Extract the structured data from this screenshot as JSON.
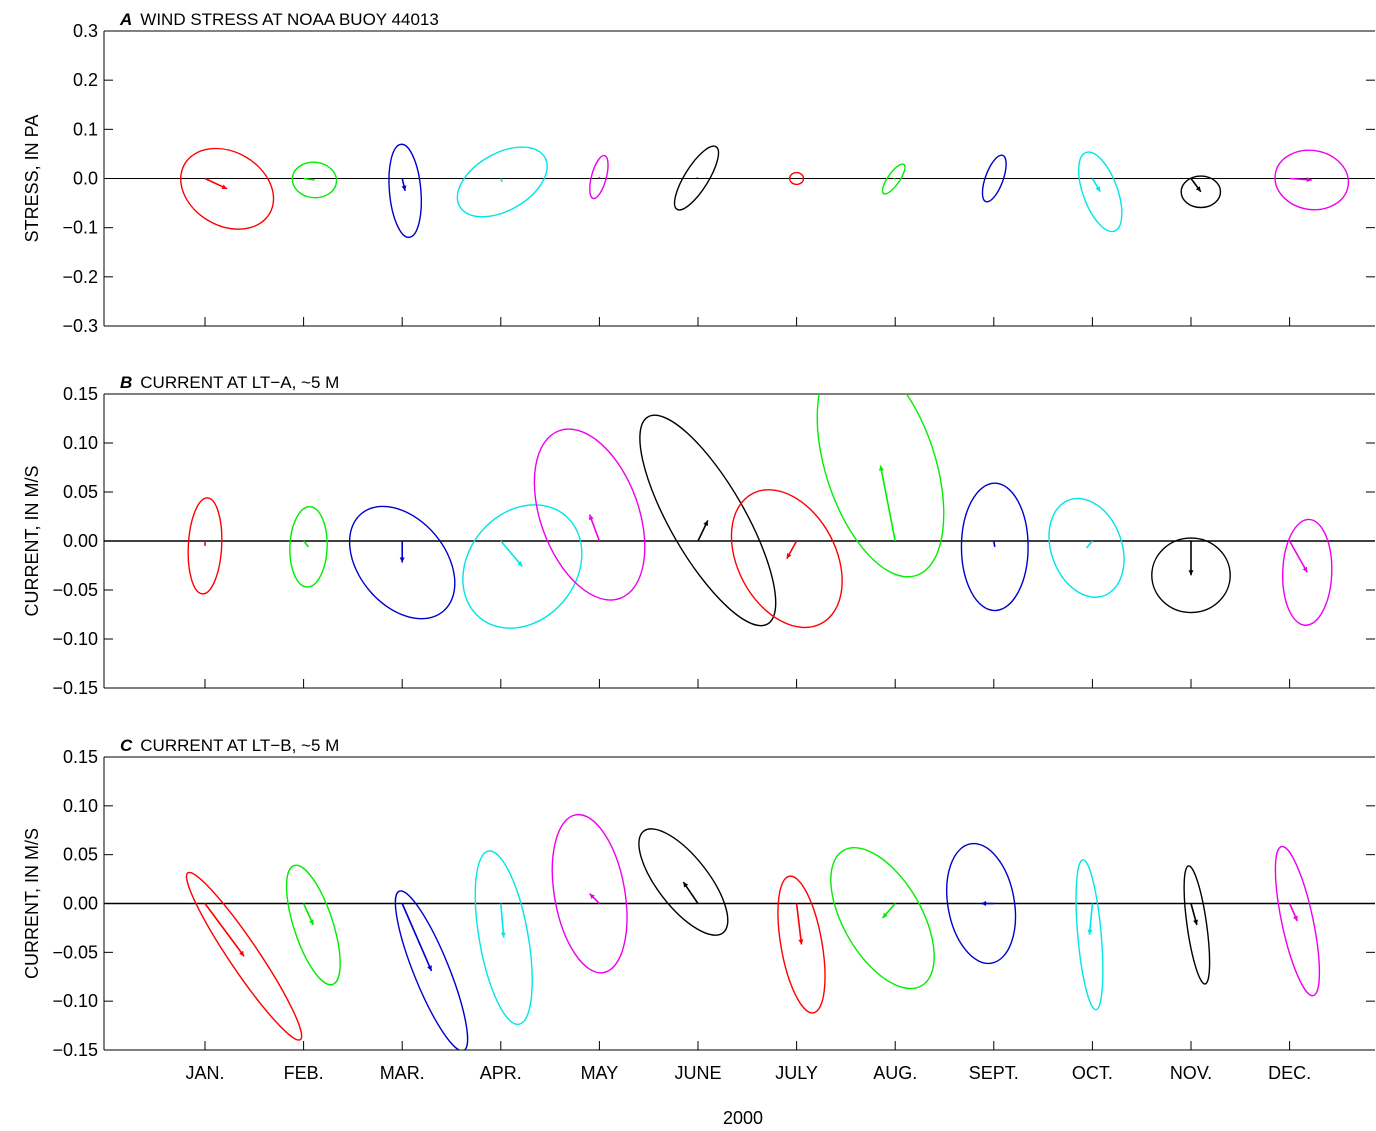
{
  "colors": {
    "red": "#ff0000",
    "green": "#00ee00",
    "blue": "#0000cc",
    "cyan": "#00e5e5",
    "magenta": "#ee00ee",
    "black": "#000000"
  },
  "month_colors": [
    "red",
    "green",
    "blue",
    "cyan",
    "magenta",
    "black",
    "red",
    "green",
    "blue",
    "cyan",
    "black",
    "magenta"
  ],
  "xlabel": "2000",
  "months": [
    "JAN.",
    "FEB.",
    "MAR.",
    "APR.",
    "MAY",
    "JUNE",
    "JULY",
    "AUG.",
    "SEPT.",
    "OCT.",
    "NOV.",
    "DEC."
  ],
  "chart_data": [
    {
      "id": "A",
      "type": "ellipse-vector",
      "letter": "A",
      "title": "WIND STRESS AT NOAA BUOY 44013",
      "ylabel": "STRESS, IN PA",
      "ylim": [
        -0.3,
        0.3
      ],
      "yticks": [
        0.3,
        0.2,
        0.1,
        0.0,
        -0.1,
        -0.2,
        -0.3
      ],
      "yticklabels": [
        "0.3",
        "0.2",
        "0.1",
        "0.0",
        "−0.1",
        "−0.2",
        "−0.3"
      ],
      "series": [
        {
          "month": "JAN.",
          "vector": [
            0.045,
            -0.021
          ],
          "ellipse": {
            "semi_major": 0.1,
            "semi_minor": 0.075,
            "angle_deg": -30,
            "offset": [
              0.045,
              -0.021
            ]
          }
        },
        {
          "month": "FEB.",
          "vector": [
            0.022,
            -0.003
          ],
          "ellipse": {
            "semi_major": 0.045,
            "semi_minor": 0.036,
            "angle_deg": -5,
            "offset": [
              0.022,
              -0.003
            ]
          }
        },
        {
          "month": "MAR.",
          "vector": [
            0.006,
            -0.025
          ],
          "ellipse": {
            "semi_major": 0.095,
            "semi_minor": 0.032,
            "angle_deg": -85,
            "offset": [
              0.006,
              -0.025
            ]
          }
        },
        {
          "month": "APR.",
          "vector": [
            0.003,
            -0.007
          ],
          "ellipse": {
            "semi_major": 0.1,
            "semi_minor": 0.058,
            "angle_deg": 30,
            "offset": [
              0.003,
              -0.007
            ]
          }
        },
        {
          "month": "MAY",
          "vector": [
            -0.001,
            0.003
          ],
          "ellipse": {
            "semi_major": 0.045,
            "semi_minor": 0.015,
            "angle_deg": 75,
            "offset": [
              -0.001,
              0.003
            ]
          }
        },
        {
          "month": "JUNE",
          "vector": [
            -0.003,
            0.001
          ],
          "ellipse": {
            "semi_major": 0.075,
            "semi_minor": 0.024,
            "angle_deg": 58,
            "offset": [
              -0.003,
              0.001
            ]
          }
        },
        {
          "month": "JULY",
          "vector": [
            0.0,
            0.0
          ],
          "ellipse": {
            "semi_major": 0.014,
            "semi_minor": 0.012,
            "angle_deg": 0,
            "offset": [
              0.0,
              0.0
            ]
          }
        },
        {
          "month": "AUG.",
          "vector": [
            -0.003,
            -0.001
          ],
          "ellipse": {
            "semi_major": 0.036,
            "semi_minor": 0.012,
            "angle_deg": 55,
            "offset": [
              -0.003,
              -0.001
            ]
          }
        },
        {
          "month": "SEPT.",
          "vector": [
            0.001,
            0.0
          ],
          "ellipse": {
            "semi_major": 0.05,
            "semi_minor": 0.018,
            "angle_deg": 70,
            "offset": [
              0.001,
              0.0
            ]
          }
        },
        {
          "month": "OCT.",
          "vector": [
            0.016,
            -0.027
          ],
          "ellipse": {
            "semi_major": 0.085,
            "semi_minor": 0.035,
            "angle_deg": -70,
            "offset": [
              0.016,
              -0.027
            ]
          }
        },
        {
          "month": "NOV.",
          "vector": [
            0.02,
            -0.027
          ],
          "ellipse": {
            "semi_major": 0.04,
            "semi_minor": 0.032,
            "angle_deg": 0,
            "offset": [
              0.02,
              -0.027
            ]
          }
        },
        {
          "month": "DEC.",
          "vector": [
            0.045,
            -0.003
          ],
          "ellipse": {
            "semi_major": 0.075,
            "semi_minor": 0.06,
            "angle_deg": -10,
            "offset": [
              0.045,
              -0.003
            ]
          }
        }
      ]
    },
    {
      "id": "B",
      "type": "ellipse-vector",
      "letter": "B",
      "title": "CURRENT AT LT−A, ~5 M",
      "ylabel": "CURRENT, IN M/S",
      "ylim": [
        -0.15,
        0.15
      ],
      "yticks": [
        0.15,
        0.1,
        0.05,
        0.0,
        -0.05,
        -0.1,
        -0.15
      ],
      "yticklabels": [
        "0.15",
        "0.10",
        "0.05",
        "0.00",
        "−0.05",
        "−0.10",
        "−0.15"
      ],
      "series": [
        {
          "month": "JAN.",
          "vector": [
            0.0,
            -0.005
          ],
          "ellipse": {
            "semi_major": 0.049,
            "semi_minor": 0.017,
            "angle_deg": -93,
            "offset": [
              0.0,
              -0.005
            ]
          }
        },
        {
          "month": "FEB.",
          "vector": [
            0.005,
            -0.006
          ],
          "ellipse": {
            "semi_major": 0.041,
            "semi_minor": 0.019,
            "angle_deg": -92,
            "offset": [
              0.005,
              -0.006
            ]
          }
        },
        {
          "month": "MAR.",
          "vector": [
            0.0,
            -0.022
          ],
          "ellipse": {
            "semi_major": 0.065,
            "semi_minor": 0.044,
            "angle_deg": -50,
            "offset": [
              0.0,
              -0.022
            ]
          }
        },
        {
          "month": "APR.",
          "vector": [
            0.022,
            -0.026
          ],
          "ellipse": {
            "semi_major": 0.068,
            "semi_minor": 0.055,
            "angle_deg": 50,
            "offset": [
              0.022,
              -0.026
            ]
          }
        },
        {
          "month": "MAY",
          "vector": [
            -0.01,
            0.027
          ],
          "ellipse": {
            "semi_major": 0.091,
            "semi_minor": 0.05,
            "angle_deg": -70,
            "offset": [
              -0.01,
              0.027
            ]
          }
        },
        {
          "month": "JUNE",
          "vector": [
            0.01,
            0.021
          ],
          "ellipse": {
            "semi_major": 0.122,
            "semi_minor": 0.038,
            "angle_deg": -60,
            "offset": [
              0.01,
              0.021
            ]
          }
        },
        {
          "month": "JULY",
          "vector": [
            -0.01,
            -0.018
          ],
          "ellipse": {
            "semi_major": 0.075,
            "semi_minor": 0.05,
            "angle_deg": -62,
            "offset": [
              -0.01,
              -0.018
            ]
          }
        },
        {
          "month": "AUG.",
          "vector": [
            -0.015,
            0.077
          ],
          "ellipse": {
            "semi_major": 0.118,
            "semi_minor": 0.056,
            "angle_deg": -72,
            "offset": [
              -0.015,
              0.077
            ]
          }
        },
        {
          "month": "SEPT.",
          "vector": [
            0.001,
            -0.006
          ],
          "ellipse": {
            "semi_major": 0.065,
            "semi_minor": 0.034,
            "angle_deg": -90,
            "offset": [
              0.001,
              -0.006
            ]
          }
        },
        {
          "month": "OCT.",
          "vector": [
            -0.006,
            -0.007
          ],
          "ellipse": {
            "semi_major": 0.052,
            "semi_minor": 0.036,
            "angle_deg": -70,
            "offset": [
              -0.006,
              -0.007
            ]
          }
        },
        {
          "month": "NOV.",
          "vector": [
            0.0,
            -0.035
          ],
          "ellipse": {
            "semi_major": 0.04,
            "semi_minor": 0.038,
            "angle_deg": 0,
            "offset": [
              0.0,
              -0.035
            ]
          }
        },
        {
          "month": "DEC.",
          "vector": [
            0.018,
            -0.032
          ],
          "ellipse": {
            "semi_major": 0.054,
            "semi_minor": 0.025,
            "angle_deg": -92,
            "offset": [
              0.018,
              -0.032
            ]
          }
        }
      ]
    },
    {
      "id": "C",
      "type": "ellipse-vector",
      "letter": "C",
      "title": "CURRENT AT LT−B, ~5 M",
      "ylabel": "CURRENT, IN M/S",
      "ylim": [
        -0.15,
        0.15
      ],
      "yticks": [
        0.15,
        0.1,
        0.05,
        0.0,
        -0.05,
        -0.1,
        -0.15
      ],
      "yticklabels": [
        "0.15",
        "0.10",
        "0.05",
        "0.00",
        "−0.05",
        "−0.10",
        "−0.15"
      ],
      "series": [
        {
          "month": "JAN.",
          "vector": [
            0.04,
            -0.054
          ],
          "ellipse": {
            "semi_major": 0.103,
            "semi_minor": 0.015,
            "angle_deg": -56,
            "offset": [
              0.04,
              -0.054
            ]
          }
        },
        {
          "month": "FEB.",
          "vector": [
            0.01,
            -0.022
          ],
          "ellipse": {
            "semi_major": 0.064,
            "semi_minor": 0.02,
            "angle_deg": -72,
            "offset": [
              0.01,
              -0.022
            ]
          }
        },
        {
          "month": "MAR.",
          "vector": [
            0.03,
            -0.069
          ],
          "ellipse": {
            "semi_major": 0.088,
            "semi_minor": 0.018,
            "angle_deg": -68,
            "offset": [
              0.03,
              -0.069
            ]
          }
        },
        {
          "month": "APR.",
          "vector": [
            0.003,
            -0.035
          ],
          "ellipse": {
            "semi_major": 0.09,
            "semi_minor": 0.025,
            "angle_deg": -80,
            "offset": [
              0.003,
              -0.035
            ]
          }
        },
        {
          "month": "MAY",
          "vector": [
            -0.01,
            0.01
          ],
          "ellipse": {
            "semi_major": 0.082,
            "semi_minor": 0.036,
            "angle_deg": -80,
            "offset": [
              -0.01,
              0.01
            ]
          }
        },
        {
          "month": "JUNE",
          "vector": [
            -0.015,
            0.022
          ],
          "ellipse": {
            "semi_major": 0.066,
            "semi_minor": 0.026,
            "angle_deg": -52,
            "offset": [
              -0.015,
              0.022
            ]
          }
        },
        {
          "month": "JULY",
          "vector": [
            0.005,
            -0.042
          ],
          "ellipse": {
            "semi_major": 0.071,
            "semi_minor": 0.021,
            "angle_deg": -80,
            "offset": [
              0.005,
              -0.042
            ]
          }
        },
        {
          "month": "AUG.",
          "vector": [
            -0.013,
            -0.015
          ],
          "ellipse": {
            "semi_major": 0.08,
            "semi_minor": 0.04,
            "angle_deg": -60,
            "offset": [
              -0.013,
              -0.015
            ]
          }
        },
        {
          "month": "SEPT.",
          "vector": [
            -0.013,
            0.0
          ],
          "ellipse": {
            "semi_major": 0.062,
            "semi_minor": 0.034,
            "angle_deg": -80,
            "offset": [
              -0.013,
              0.0
            ]
          }
        },
        {
          "month": "OCT.",
          "vector": [
            -0.003,
            -0.032
          ],
          "ellipse": {
            "semi_major": 0.077,
            "semi_minor": 0.012,
            "angle_deg": -85,
            "offset": [
              -0.003,
              -0.032
            ]
          }
        },
        {
          "month": "NOV.",
          "vector": [
            0.006,
            -0.022
          ],
          "ellipse": {
            "semi_major": 0.061,
            "semi_minor": 0.01,
            "angle_deg": -82,
            "offset": [
              0.006,
              -0.022
            ]
          }
        },
        {
          "month": "DEC.",
          "vector": [
            0.008,
            -0.018
          ],
          "ellipse": {
            "semi_major": 0.078,
            "semi_minor": 0.016,
            "angle_deg": -78,
            "offset": [
              0.008,
              -0.018
            ]
          }
        }
      ]
    }
  ]
}
